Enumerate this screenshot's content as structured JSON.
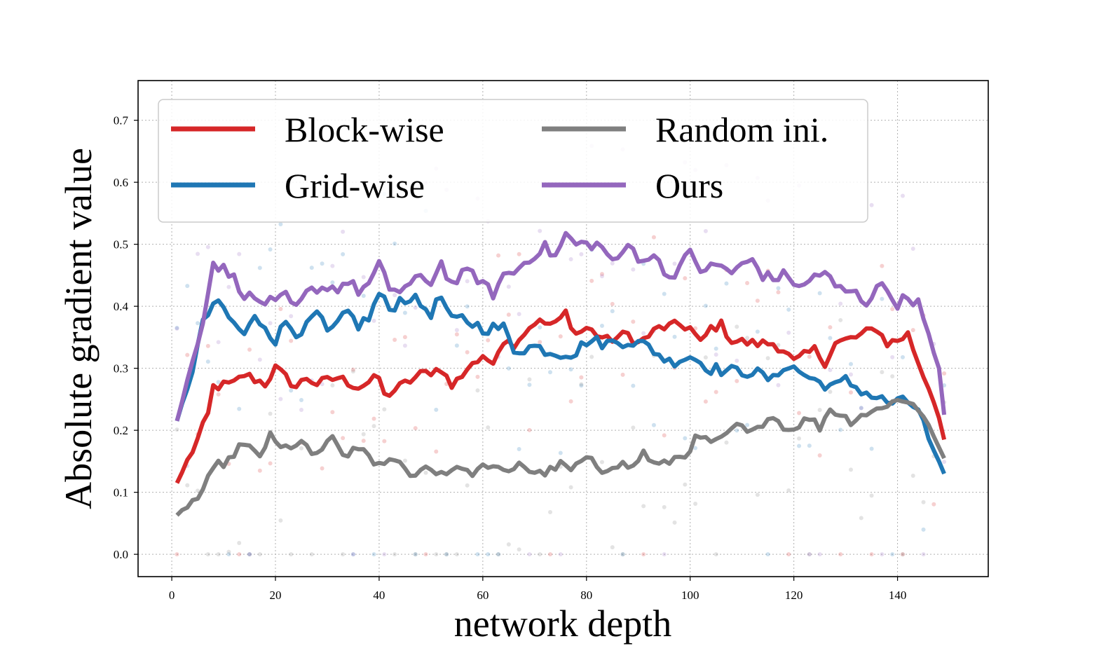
{
  "chart_data": {
    "type": "line",
    "title": "",
    "xlabel": "network depth",
    "ylabel": "Absolute gradient value",
    "xlim": [
      -6.5,
      157.5
    ],
    "ylim": [
      -0.036,
      0.764
    ],
    "xticks": [
      0,
      20,
      40,
      60,
      80,
      100,
      120,
      140
    ],
    "yticks": [
      0.0,
      0.1,
      0.2,
      0.3,
      0.4,
      0.5,
      0.6,
      0.7
    ],
    "grid": true,
    "legend_position": "top-left",
    "legend_columns": 2,
    "series": [
      {
        "name": "Block-wise",
        "color": "#d62728",
        "anchors": [
          [
            1,
            0.115
          ],
          [
            3,
            0.15
          ],
          [
            5,
            0.185
          ],
          [
            7,
            0.225
          ],
          [
            8,
            0.27
          ],
          [
            12,
            0.275
          ],
          [
            14,
            0.29
          ],
          [
            18,
            0.275
          ],
          [
            20,
            0.3
          ],
          [
            24,
            0.27
          ],
          [
            26,
            0.285
          ],
          [
            28,
            0.275
          ],
          [
            32,
            0.285
          ],
          [
            36,
            0.27
          ],
          [
            40,
            0.285
          ],
          [
            41,
            0.255
          ],
          [
            44,
            0.27
          ],
          [
            48,
            0.29
          ],
          [
            52,
            0.3
          ],
          [
            54,
            0.27
          ],
          [
            58,
            0.31
          ],
          [
            62,
            0.315
          ],
          [
            64,
            0.345
          ],
          [
            66,
            0.34
          ],
          [
            70,
            0.375
          ],
          [
            74,
            0.37
          ],
          [
            76,
            0.39
          ],
          [
            78,
            0.355
          ],
          [
            80,
            0.365
          ],
          [
            84,
            0.345
          ],
          [
            88,
            0.355
          ],
          [
            90,
            0.34
          ],
          [
            94,
            0.365
          ],
          [
            98,
            0.37
          ],
          [
            100,
            0.365
          ],
          [
            102,
            0.34
          ],
          [
            104,
            0.365
          ],
          [
            106,
            0.37
          ],
          [
            108,
            0.345
          ],
          [
            112,
            0.34
          ],
          [
            116,
            0.34
          ],
          [
            118,
            0.33
          ],
          [
            120,
            0.31
          ],
          [
            124,
            0.33
          ],
          [
            126,
            0.31
          ],
          [
            128,
            0.34
          ],
          [
            132,
            0.35
          ],
          [
            136,
            0.365
          ],
          [
            138,
            0.34
          ],
          [
            140,
            0.345
          ],
          [
            142,
            0.355
          ],
          [
            144,
            0.31
          ],
          [
            146,
            0.27
          ],
          [
            148,
            0.22
          ],
          [
            149,
            0.185
          ]
        ],
        "amp": 0.008
      },
      {
        "name": "Grid-wise",
        "color": "#1f77b4",
        "anchors": [
          [
            1,
            0.215
          ],
          [
            4,
            0.3
          ],
          [
            6,
            0.37
          ],
          [
            8,
            0.405
          ],
          [
            10,
            0.395
          ],
          [
            12,
            0.37
          ],
          [
            14,
            0.355
          ],
          [
            16,
            0.38
          ],
          [
            18,
            0.37
          ],
          [
            20,
            0.345
          ],
          [
            22,
            0.375
          ],
          [
            24,
            0.36
          ],
          [
            26,
            0.365
          ],
          [
            28,
            0.39
          ],
          [
            30,
            0.355
          ],
          [
            32,
            0.37
          ],
          [
            34,
            0.39
          ],
          [
            36,
            0.37
          ],
          [
            38,
            0.38
          ],
          [
            40,
            0.42
          ],
          [
            42,
            0.395
          ],
          [
            44,
            0.41
          ],
          [
            46,
            0.415
          ],
          [
            50,
            0.39
          ],
          [
            52,
            0.415
          ],
          [
            54,
            0.375
          ],
          [
            56,
            0.38
          ],
          [
            60,
            0.365
          ],
          [
            64,
            0.365
          ],
          [
            66,
            0.33
          ],
          [
            70,
            0.335
          ],
          [
            74,
            0.325
          ],
          [
            78,
            0.325
          ],
          [
            80,
            0.345
          ],
          [
            84,
            0.34
          ],
          [
            88,
            0.345
          ],
          [
            92,
            0.335
          ],
          [
            96,
            0.31
          ],
          [
            100,
            0.32
          ],
          [
            104,
            0.3
          ],
          [
            108,
            0.295
          ],
          [
            112,
            0.295
          ],
          [
            116,
            0.28
          ],
          [
            118,
            0.305
          ],
          [
            120,
            0.3
          ],
          [
            124,
            0.28
          ],
          [
            128,
            0.27
          ],
          [
            130,
            0.28
          ],
          [
            134,
            0.26
          ],
          [
            138,
            0.245
          ],
          [
            142,
            0.245
          ],
          [
            144,
            0.235
          ],
          [
            146,
            0.185
          ],
          [
            148,
            0.15
          ],
          [
            149,
            0.13
          ]
        ],
        "amp": 0.01
      },
      {
        "name": "Random ini.",
        "color": "#7f7f7f",
        "anchors": [
          [
            1,
            0.063
          ],
          [
            3,
            0.08
          ],
          [
            5,
            0.09
          ],
          [
            7,
            0.12
          ],
          [
            9,
            0.145
          ],
          [
            11,
            0.15
          ],
          [
            13,
            0.175
          ],
          [
            15,
            0.17
          ],
          [
            17,
            0.16
          ],
          [
            19,
            0.19
          ],
          [
            21,
            0.17
          ],
          [
            23,
            0.175
          ],
          [
            25,
            0.18
          ],
          [
            27,
            0.16
          ],
          [
            29,
            0.17
          ],
          [
            31,
            0.185
          ],
          [
            33,
            0.16
          ],
          [
            35,
            0.165
          ],
          [
            37,
            0.17
          ],
          [
            39,
            0.15
          ],
          [
            41,
            0.14
          ],
          [
            43,
            0.155
          ],
          [
            45,
            0.135
          ],
          [
            47,
            0.13
          ],
          [
            49,
            0.14
          ],
          [
            51,
            0.135
          ],
          [
            53,
            0.13
          ],
          [
            55,
            0.145
          ],
          [
            57,
            0.13
          ],
          [
            59,
            0.135
          ],
          [
            61,
            0.145
          ],
          [
            63,
            0.135
          ],
          [
            65,
            0.13
          ],
          [
            67,
            0.15
          ],
          [
            69,
            0.135
          ],
          [
            71,
            0.13
          ],
          [
            73,
            0.135
          ],
          [
            75,
            0.145
          ],
          [
            77,
            0.135
          ],
          [
            79,
            0.15
          ],
          [
            81,
            0.15
          ],
          [
            83,
            0.135
          ],
          [
            85,
            0.145
          ],
          [
            87,
            0.145
          ],
          [
            89,
            0.14
          ],
          [
            91,
            0.165
          ],
          [
            93,
            0.145
          ],
          [
            95,
            0.145
          ],
          [
            97,
            0.155
          ],
          [
            99,
            0.16
          ],
          [
            101,
            0.185
          ],
          [
            103,
            0.185
          ],
          [
            105,
            0.18
          ],
          [
            107,
            0.19
          ],
          [
            109,
            0.21
          ],
          [
            111,
            0.195
          ],
          [
            113,
            0.2
          ],
          [
            115,
            0.225
          ],
          [
            117,
            0.215
          ],
          [
            119,
            0.2
          ],
          [
            121,
            0.21
          ],
          [
            123,
            0.22
          ],
          [
            125,
            0.205
          ],
          [
            127,
            0.235
          ],
          [
            129,
            0.225
          ],
          [
            131,
            0.215
          ],
          [
            133,
            0.225
          ],
          [
            135,
            0.23
          ],
          [
            137,
            0.235
          ],
          [
            139,
            0.25
          ],
          [
            141,
            0.245
          ],
          [
            143,
            0.245
          ],
          [
            145,
            0.225
          ],
          [
            147,
            0.19
          ],
          [
            149,
            0.155
          ]
        ],
        "amp": 0.007
      },
      {
        "name": "Ours",
        "color": "#9467bd",
        "anchors": [
          [
            1,
            0.215
          ],
          [
            4,
            0.31
          ],
          [
            6,
            0.38
          ],
          [
            8,
            0.47
          ],
          [
            10,
            0.46
          ],
          [
            12,
            0.445
          ],
          [
            14,
            0.42
          ],
          [
            16,
            0.41
          ],
          [
            20,
            0.405
          ],
          [
            22,
            0.415
          ],
          [
            24,
            0.395
          ],
          [
            26,
            0.42
          ],
          [
            28,
            0.43
          ],
          [
            32,
            0.43
          ],
          [
            34,
            0.44
          ],
          [
            36,
            0.425
          ],
          [
            38,
            0.435
          ],
          [
            40,
            0.465
          ],
          [
            42,
            0.43
          ],
          [
            44,
            0.425
          ],
          [
            48,
            0.445
          ],
          [
            50,
            0.44
          ],
          [
            52,
            0.47
          ],
          [
            54,
            0.435
          ],
          [
            56,
            0.45
          ],
          [
            58,
            0.455
          ],
          [
            60,
            0.435
          ],
          [
            62,
            0.42
          ],
          [
            64,
            0.45
          ],
          [
            66,
            0.455
          ],
          [
            68,
            0.47
          ],
          [
            70,
            0.485
          ],
          [
            72,
            0.495
          ],
          [
            74,
            0.48
          ],
          [
            76,
            0.515
          ],
          [
            78,
            0.5
          ],
          [
            82,
            0.5
          ],
          [
            84,
            0.485
          ],
          [
            86,
            0.47
          ],
          [
            88,
            0.5
          ],
          [
            90,
            0.48
          ],
          [
            94,
            0.475
          ],
          [
            96,
            0.445
          ],
          [
            98,
            0.465
          ],
          [
            100,
            0.485
          ],
          [
            102,
            0.46
          ],
          [
            106,
            0.465
          ],
          [
            108,
            0.455
          ],
          [
            110,
            0.465
          ],
          [
            112,
            0.475
          ],
          [
            114,
            0.45
          ],
          [
            116,
            0.445
          ],
          [
            118,
            0.45
          ],
          [
            122,
            0.43
          ],
          [
            124,
            0.45
          ],
          [
            126,
            0.455
          ],
          [
            128,
            0.43
          ],
          [
            132,
            0.42
          ],
          [
            134,
            0.405
          ],
          [
            136,
            0.435
          ],
          [
            138,
            0.425
          ],
          [
            140,
            0.405
          ],
          [
            142,
            0.415
          ],
          [
            144,
            0.405
          ],
          [
            146,
            0.35
          ],
          [
            148,
            0.3
          ],
          [
            149,
            0.225
          ]
        ],
        "amp": 0.009
      }
    ],
    "scatter_note": "faint per-layer raw gradient points drawn behind each line"
  }
}
